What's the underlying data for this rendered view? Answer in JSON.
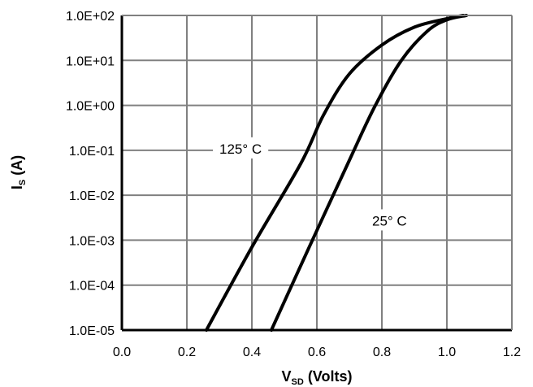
{
  "chart_data": {
    "type": "line",
    "y_scale": "log",
    "xlabel": {
      "main": "V",
      "sub": "SD",
      "rest": " (Volts)"
    },
    "ylabel": {
      "main": "I",
      "sub": "S",
      "rest": " (A)"
    },
    "xlim": [
      0.0,
      1.2
    ],
    "ylim": [
      1e-05,
      100
    ],
    "x_ticks": [
      "0.0",
      "0.2",
      "0.4",
      "0.6",
      "0.8",
      "1.0",
      "1.2"
    ],
    "y_ticks": [
      "1.0E-05",
      "1.0E-04",
      "1.0E-03",
      "1.0E-02",
      "1.0E-01",
      "1.0E+00",
      "1.0E+01",
      "1.0E+02"
    ],
    "grid": true,
    "series": [
      {
        "name": "125° C",
        "points": [
          [
            0.26,
            1e-05
          ],
          [
            0.4,
            0.0007
          ],
          [
            0.55,
            0.05
          ],
          [
            0.62,
            0.6
          ],
          [
            0.7,
            5
          ],
          [
            0.8,
            22
          ],
          [
            0.9,
            55
          ],
          [
            1.0,
            85
          ],
          [
            1.05,
            100
          ]
        ]
      },
      {
        "name": "25° C",
        "points": [
          [
            0.46,
            1e-05
          ],
          [
            0.58,
            0.0008
          ],
          [
            0.7,
            0.06
          ],
          [
            0.78,
            1.0
          ],
          [
            0.86,
            10
          ],
          [
            0.94,
            45
          ],
          [
            1.0,
            80
          ],
          [
            1.06,
            100
          ]
        ]
      }
    ],
    "annotations": [
      {
        "text": "125° C",
        "series": 0,
        "x": 0.3,
        "y": 0.1
      },
      {
        "text": "25° C",
        "series": 1,
        "x": 0.77,
        "y": 0.0025
      }
    ]
  }
}
